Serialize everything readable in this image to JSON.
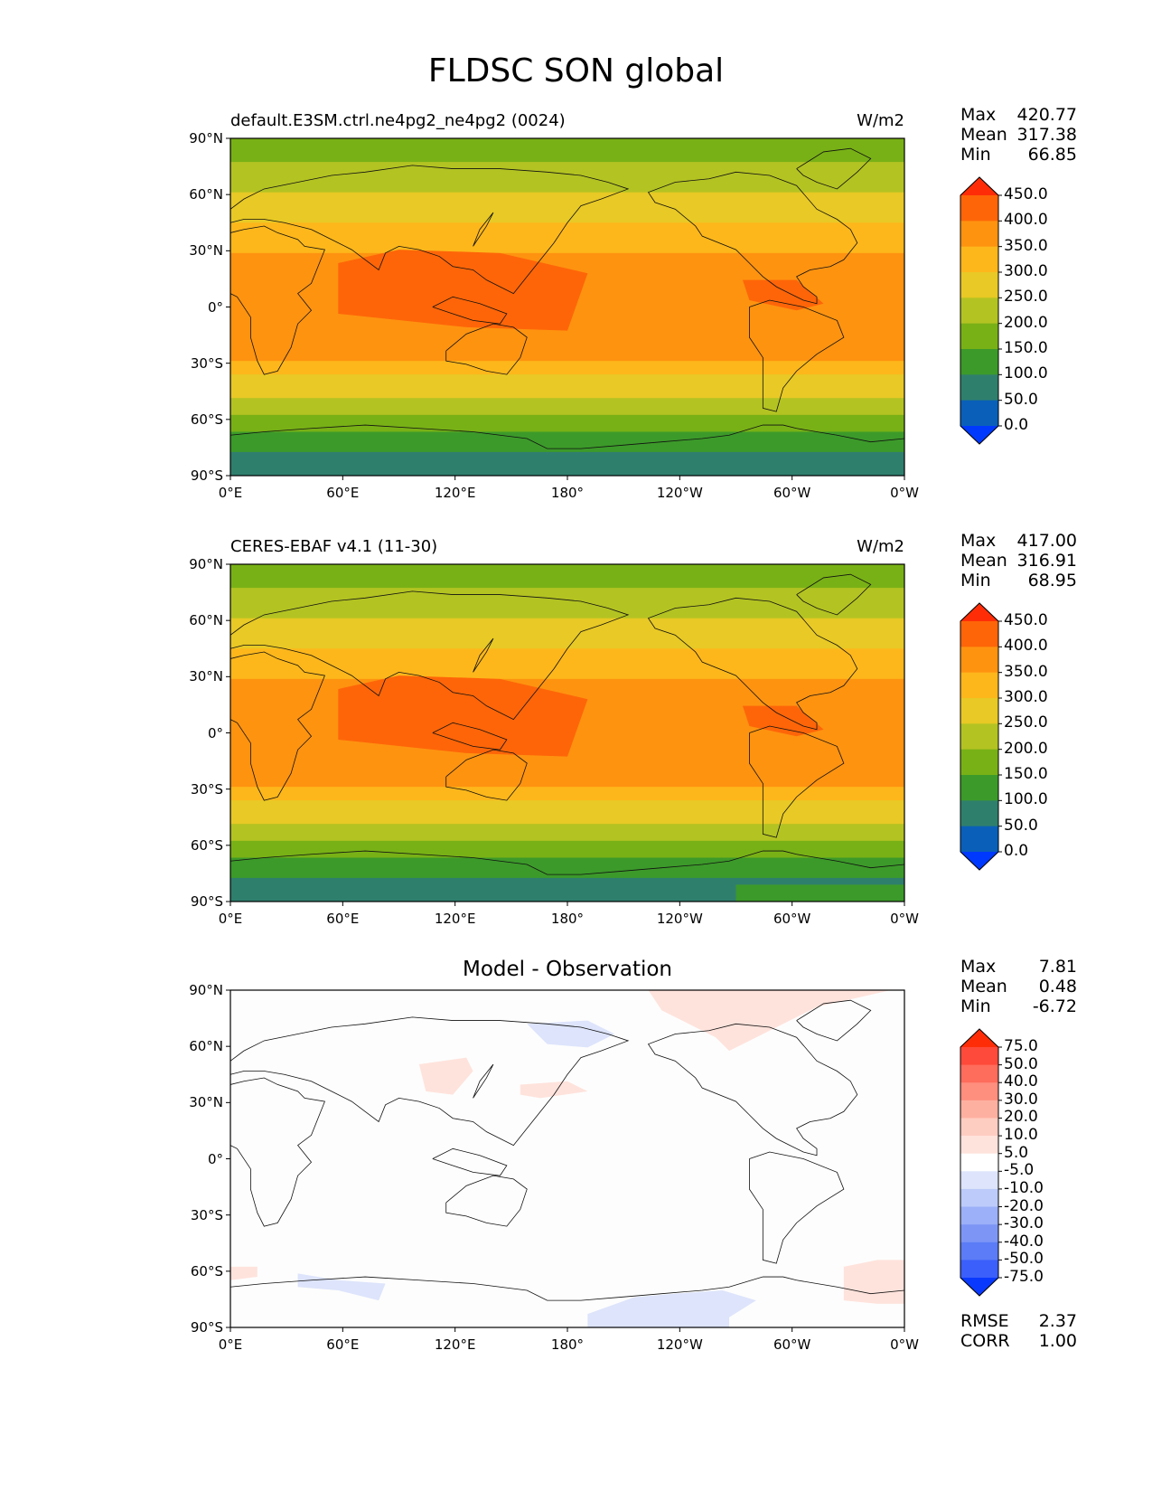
{
  "title": "FLDSC SON global",
  "chart_data": [
    {
      "type": "heatmap",
      "panel": "model",
      "title_left": "default.E3SM.ctrl.ne4pg2_ne4pg2 (0024)",
      "title_right": "W/m2",
      "title_center": "",
      "stats": [
        {
          "label": "Max",
          "value": "420.77"
        },
        {
          "label": "Mean",
          "value": "317.38"
        },
        {
          "label": "Min",
          "value": "66.85"
        }
      ],
      "extra_stats": [],
      "x_ticks": [
        "0°E",
        "60°E",
        "120°E",
        "180°",
        "120°W",
        "60°W",
        "0°W"
      ],
      "y_ticks": [
        "90°N",
        "60°N",
        "30°N",
        "0°",
        "30°S",
        "60°S",
        "90°S"
      ],
      "colorbar": {
        "levels": [
          "450.0",
          "400.0",
          "350.0",
          "300.0",
          "250.0",
          "200.0",
          "150.0",
          "100.0",
          "50.0",
          "0.0"
        ],
        "colors": [
          "#fe2d08",
          "#fe6508",
          "#fe9310",
          "#fdb71b",
          "#e8c925",
          "#b3c322",
          "#78b116",
          "#3c9a2a",
          "#2f7f6d",
          "#0a60b8",
          "#0039fe"
        ]
      }
    },
    {
      "type": "heatmap",
      "panel": "observation",
      "title_left": "CERES-EBAF v4.1 (11-30)",
      "title_right": "W/m2",
      "title_center": "",
      "stats": [
        {
          "label": "Max",
          "value": "417.00"
        },
        {
          "label": "Mean",
          "value": "316.91"
        },
        {
          "label": "Min",
          "value": "68.95"
        }
      ],
      "extra_stats": [],
      "x_ticks": [
        "0°E",
        "60°E",
        "120°E",
        "180°",
        "120°W",
        "60°W",
        "0°W"
      ],
      "y_ticks": [
        "90°N",
        "60°N",
        "30°N",
        "0°",
        "30°S",
        "60°S",
        "90°S"
      ],
      "colorbar": {
        "levels": [
          "450.0",
          "400.0",
          "350.0",
          "300.0",
          "250.0",
          "200.0",
          "150.0",
          "100.0",
          "50.0",
          "0.0"
        ],
        "colors": [
          "#fe2d08",
          "#fe6508",
          "#fe9310",
          "#fdb71b",
          "#e8c925",
          "#b3c322",
          "#78b116",
          "#3c9a2a",
          "#2f7f6d",
          "#0a60b8",
          "#0039fe"
        ]
      }
    },
    {
      "type": "heatmap",
      "panel": "difference",
      "title_left": "",
      "title_right": "",
      "title_center": "Model - Observation",
      "stats": [
        {
          "label": "Max",
          "value": "7.81"
        },
        {
          "label": "Mean",
          "value": "0.48"
        },
        {
          "label": "Min",
          "value": "-6.72"
        }
      ],
      "extra_stats": [
        {
          "label": "RMSE",
          "value": "2.37"
        },
        {
          "label": "CORR",
          "value": "1.00"
        }
      ],
      "x_ticks": [
        "0°E",
        "60°E",
        "120°E",
        "180°",
        "120°W",
        "60°W",
        "0°W"
      ],
      "y_ticks": [
        "90°N",
        "60°N",
        "30°N",
        "0°",
        "30°S",
        "60°S",
        "90°S"
      ],
      "colorbar": {
        "levels": [
          "75.0",
          "50.0",
          "40.0",
          "30.0",
          "20.0",
          "10.0",
          "5.0",
          "-5.0",
          "-10.0",
          "-20.0",
          "-30.0",
          "-40.0",
          "-50.0",
          "-75.0"
        ],
        "colors": [
          "#fe2d08",
          "#fe4a3a",
          "#fe6c5c",
          "#fe8e7e",
          "#feb0a0",
          "#fecdc2",
          "#fee3dc",
          "#ffffff",
          "#dde4fb",
          "#bccbfa",
          "#9bb0f8",
          "#7d96f6",
          "#5b7cf6",
          "#3b5ffa",
          "#0a39fe"
        ]
      }
    }
  ]
}
